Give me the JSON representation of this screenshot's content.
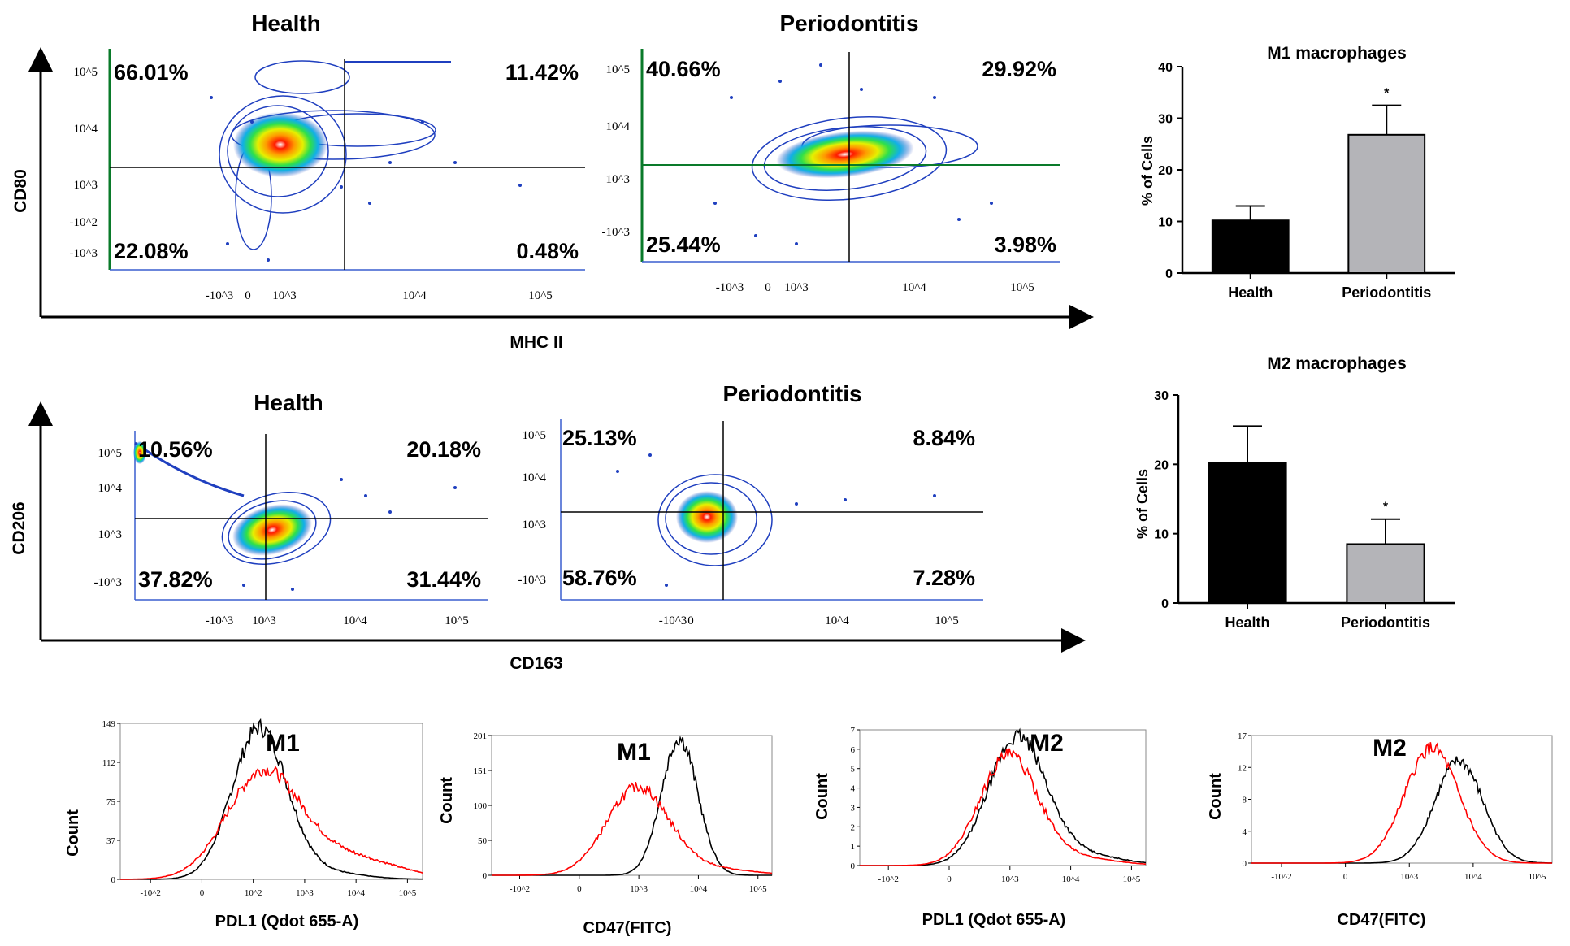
{
  "colors": {
    "m1_curve": "#ff0000",
    "m2_curve": "#000000",
    "bar_health": "#000000",
    "bar_perio": "#b4b4b8",
    "contour": "#1f3fbf"
  },
  "shared_labels": {
    "top_x_axis": "MHC II",
    "top_y_axis": "CD80",
    "mid_x_axis": "CD163",
    "mid_y_axis": "CD206",
    "count_label": "Count"
  },
  "chart_data": [
    {
      "type": "scatter",
      "id": "top-health",
      "title": "Health",
      "xlabel": "MHC II",
      "ylabel": "CD80",
      "x_ticks": [
        "-10^3",
        "0",
        "10^3",
        "10^4",
        "10^5"
      ],
      "y_ticks": [
        "10^5",
        "10^4",
        "10^3",
        "-10^2",
        "-10^3"
      ],
      "quadrants": {
        "upper_left": "66.01%",
        "upper_right": "11.42%",
        "lower_left": "22.08%",
        "lower_right": "0.48%"
      }
    },
    {
      "type": "scatter",
      "id": "top-perio",
      "title": "Periodontitis",
      "xlabel": "MHC II",
      "ylabel": "CD80",
      "x_ticks": [
        "-10^3",
        "0",
        "10^3",
        "10^4",
        "10^5"
      ],
      "y_ticks": [
        "10^5",
        "10^4",
        "10^3",
        "-10^3"
      ],
      "quadrants": {
        "upper_left": "40.66%",
        "upper_right": "29.92%",
        "lower_left": "25.44%",
        "lower_right": "3.98%"
      }
    },
    {
      "type": "bar",
      "id": "bar-m1",
      "title": "M1 macrophages",
      "ylabel": "% of Cells",
      "categories": [
        "Health",
        "Periodontitis"
      ],
      "values": [
        10.2,
        26.8
      ],
      "errors": [
        2.8,
        5.7
      ],
      "ylim": [
        0,
        40
      ],
      "yticks": [
        "0",
        "10",
        "20",
        "30",
        "40"
      ],
      "significance": [
        "",
        "*"
      ]
    },
    {
      "type": "scatter",
      "id": "mid-health",
      "title": "Health",
      "xlabel": "CD163",
      "ylabel": "CD206",
      "x_ticks": [
        "-10^3",
        "10^3",
        "10^4",
        "10^5"
      ],
      "y_ticks": [
        "10^5",
        "10^4",
        "10^3",
        "-10^3"
      ],
      "quadrants": {
        "upper_left": "10.56%",
        "upper_right": "20.18%",
        "lower_left": "37.82%",
        "lower_right": "31.44%"
      }
    },
    {
      "type": "scatter",
      "id": "mid-perio",
      "title": "Periodontitis",
      "xlabel": "CD163",
      "ylabel": "CD206",
      "x_ticks": [
        "-10^3",
        "0",
        "10^4",
        "10^5"
      ],
      "y_ticks": [
        "10^5",
        "10^4",
        "10^3",
        "-10^3"
      ],
      "quadrants": {
        "upper_left": "25.13%",
        "upper_right": "8.84%",
        "lower_left": "58.76%",
        "lower_right": "7.28%"
      }
    },
    {
      "type": "bar",
      "id": "bar-m2",
      "title": "M2 macrophages",
      "ylabel": "% of Cells",
      "categories": [
        "Health",
        "Periodontitis"
      ],
      "values": [
        20.2,
        8.5
      ],
      "errors": [
        5.3,
        3.6
      ],
      "ylim": [
        0,
        30
      ],
      "yticks": [
        "0",
        "10",
        "20",
        "30"
      ],
      "significance": [
        "",
        "*"
      ]
    },
    {
      "type": "line",
      "id": "hist-1",
      "title": "M1",
      "xlabel": "PDL1 (Qdot 655-A)",
      "ylabel": "Count",
      "yticks": [
        "0",
        "37",
        "75",
        "112",
        "149"
      ],
      "x_ticks": [
        "-10^2",
        "0",
        "10^2",
        "10^3",
        "10^4",
        "10^5"
      ],
      "ymax": 149,
      "series": [
        {
          "name": "black",
          "mean": 0.46,
          "sd": 0.09,
          "peak": 0.96,
          "tail": 0.05
        },
        {
          "name": "red",
          "mean": 0.47,
          "sd": 0.12,
          "peak": 0.66,
          "tail": 0.15
        }
      ]
    },
    {
      "type": "line",
      "id": "hist-2",
      "title": "M1",
      "xlabel": "CD47(FITC)",
      "ylabel": "Count",
      "yticks": [
        "0",
        "50",
        "100",
        "151",
        "201"
      ],
      "x_ticks": [
        "-10^2",
        "0",
        "10^3",
        "10^4",
        "10^5"
      ],
      "ymax": 201,
      "series": [
        {
          "name": "black",
          "mean": 0.67,
          "sd": 0.065,
          "peak": 0.98,
          "tail": 0.0
        },
        {
          "name": "red",
          "mean": 0.52,
          "sd": 0.11,
          "peak": 0.62,
          "tail": 0.05
        }
      ]
    },
    {
      "type": "line",
      "id": "hist-3",
      "title": "M2",
      "xlabel": "PDL1 (Qdot 655-A)",
      "ylabel": "Count",
      "yticks": [
        "0",
        "1",
        "2",
        "3",
        "4",
        "5",
        "6",
        "7"
      ],
      "x_ticks": [
        "-10^2",
        "0",
        "10^3",
        "10^4",
        "10^5"
      ],
      "ymax": 7,
      "series": [
        {
          "name": "black",
          "mean": 0.55,
          "sd": 0.1,
          "peak": 0.93,
          "tail": 0.08
        },
        {
          "name": "red",
          "mean": 0.52,
          "sd": 0.1,
          "peak": 0.8,
          "tail": 0.06
        }
      ]
    },
    {
      "type": "line",
      "id": "hist-4",
      "title": "M2",
      "xlabel": "CD47(FITC)",
      "ylabel": "Count",
      "yticks": [
        "0",
        "4",
        "8",
        "12",
        "17"
      ],
      "x_ticks": [
        "-10^2",
        "0",
        "10^3",
        "10^4",
        "10^5"
      ],
      "ymax": 17,
      "series": [
        {
          "name": "black",
          "mean": 0.69,
          "sd": 0.08,
          "peak": 0.8,
          "tail": 0.0
        },
        {
          "name": "red",
          "mean": 0.6,
          "sd": 0.09,
          "peak": 0.9,
          "tail": 0.0
        }
      ]
    }
  ]
}
